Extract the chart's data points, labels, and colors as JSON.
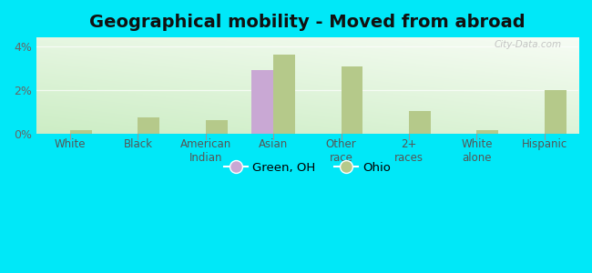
{
  "title": "Geographical mobility - Moved from abroad",
  "categories": [
    "White",
    "Black",
    "American\nIndian",
    "Asian",
    "Other\nrace",
    "2+\nraces",
    "White\nalone",
    "Hispanic"
  ],
  "green_oh_values": [
    0.0,
    0.0,
    0.0,
    2.9,
    0.0,
    0.0,
    0.0,
    0.0
  ],
  "ohio_values": [
    0.18,
    0.78,
    0.62,
    3.6,
    3.1,
    1.05,
    0.18,
    2.0
  ],
  "green_oh_color": "#c9a8d4",
  "ohio_color": "#b5c98a",
  "bg_outer": "#00e8f8",
  "ylim": [
    0,
    4.4
  ],
  "yticks": [
    0,
    2,
    4
  ],
  "ytick_labels": [
    "0%",
    "2%",
    "4%"
  ],
  "title_fontsize": 14,
  "watermark": "City-Data.com",
  "legend_green_oh": "Green, OH",
  "legend_ohio": "Ohio",
  "bar_width": 0.32
}
